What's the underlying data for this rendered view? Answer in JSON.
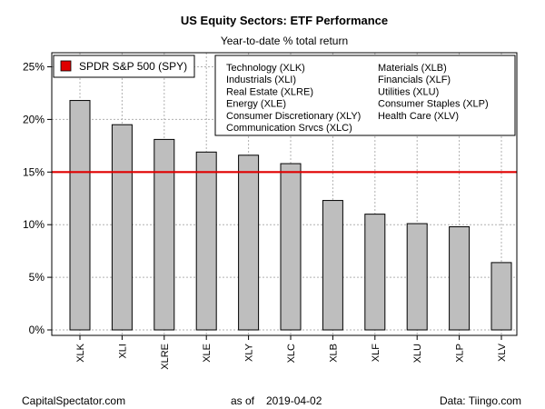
{
  "chart_data": {
    "type": "bar",
    "title": "US Equity Sectors: ETF Performance",
    "subtitle": "Year-to-date % total return",
    "categories": [
      "XLK",
      "XLI",
      "XLRE",
      "XLE",
      "XLY",
      "XLC",
      "XLB",
      "XLF",
      "XLU",
      "XLP",
      "XLV"
    ],
    "values": [
      21.8,
      19.5,
      18.1,
      16.9,
      16.6,
      15.8,
      12.3,
      11.0,
      10.1,
      9.8,
      6.4
    ],
    "ylim": [
      0,
      26
    ],
    "yticks": [
      0,
      5,
      10,
      15,
      20,
      25
    ],
    "ytick_labels": [
      "0%",
      "5%",
      "10%",
      "15%",
      "20%",
      "25%"
    ],
    "grid": true,
    "bar_color": "#bebebe",
    "benchmark": {
      "name": "SPDR S&P 500 (SPY)",
      "value": 15.0,
      "color": "#e00000"
    },
    "legend_placement": "top",
    "legend_left": [
      "Technology (XLK)",
      "Industrials (XLI)",
      "Real Estate (XLRE)",
      "Energy (XLE)",
      "Consumer Discretionary (XLY)",
      "Communication Srvcs (XLC)"
    ],
    "legend_right": [
      "Materials (XLB)",
      "Financials (XLF)",
      "Utilities (XLU)",
      "Consumer Staples (XLP)",
      "Health Care (XLV)"
    ]
  },
  "footer": {
    "left": "CapitalSpectator.com",
    "as_of_label": "as of",
    "date": "2019-04-02",
    "right": "Data: Tiingo.com"
  }
}
